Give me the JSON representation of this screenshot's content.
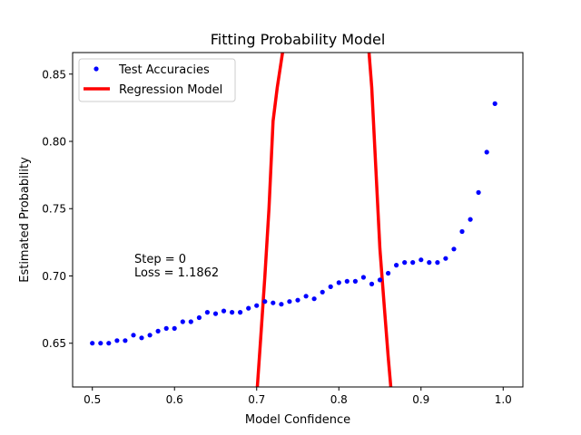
{
  "chart_data": {
    "type": "scatter",
    "title": "Fitting Probability Model",
    "xlabel": "Model Confidence",
    "ylabel": "Estimated Probability",
    "xlim": [
      0.476,
      1.024
    ],
    "ylim": [
      0.6175,
      0.866
    ],
    "xticks": [
      0.5,
      0.6,
      0.7,
      0.8,
      0.9,
      1.0
    ],
    "xtick_labels": [
      "0.5",
      "0.6",
      "0.7",
      "0.8",
      "0.9",
      "1.0"
    ],
    "yticks": [
      0.65,
      0.7,
      0.75,
      0.8,
      0.85
    ],
    "ytick_labels": [
      "0.65",
      "0.70",
      "0.75",
      "0.80",
      "0.85"
    ],
    "grid": false,
    "legend_position": "top-left",
    "annotations": [
      "Step = 0",
      "Loss = 1.1862"
    ],
    "series": [
      {
        "name": "Test Accuracies",
        "kind": "markers",
        "color": "#0000ff",
        "x": [
          0.5,
          0.51,
          0.52,
          0.53,
          0.54,
          0.55,
          0.56,
          0.57,
          0.58,
          0.59,
          0.6,
          0.61,
          0.62,
          0.63,
          0.64,
          0.65,
          0.66,
          0.67,
          0.68,
          0.69,
          0.7,
          0.71,
          0.72,
          0.73,
          0.74,
          0.75,
          0.76,
          0.77,
          0.78,
          0.79,
          0.8,
          0.81,
          0.82,
          0.83,
          0.84,
          0.85,
          0.86,
          0.87,
          0.88,
          0.89,
          0.9,
          0.91,
          0.92,
          0.93,
          0.94,
          0.95,
          0.96,
          0.97,
          0.98,
          0.99
        ],
        "y": [
          0.65,
          0.65,
          0.65,
          0.652,
          0.652,
          0.656,
          0.654,
          0.656,
          0.659,
          0.661,
          0.661,
          0.666,
          0.666,
          0.669,
          0.673,
          0.672,
          0.674,
          0.673,
          0.673,
          0.676,
          0.678,
          0.681,
          0.68,
          0.679,
          0.681,
          0.682,
          0.685,
          0.683,
          0.688,
          0.692,
          0.695,
          0.696,
          0.696,
          0.699,
          0.694,
          0.697,
          0.702,
          0.708,
          0.71,
          0.71,
          0.712,
          0.71,
          0.71,
          0.713,
          0.72,
          0.733,
          0.742,
          0.762,
          0.792,
          0.828
        ]
      },
      {
        "name": "Regression Model",
        "kind": "line",
        "color": "#ff0000",
        "x": [
          0.7,
          0.705,
          0.71,
          0.715,
          0.72,
          0.725,
          0.73,
          0.735,
          0.835,
          0.84,
          0.845,
          0.85,
          0.855,
          0.86,
          0.865
        ],
        "y": [
          0.61,
          0.655,
          0.7,
          0.75,
          0.815,
          0.84,
          0.86,
          0.88,
          0.88,
          0.84,
          0.78,
          0.72,
          0.68,
          0.64,
          0.605
        ]
      }
    ]
  }
}
